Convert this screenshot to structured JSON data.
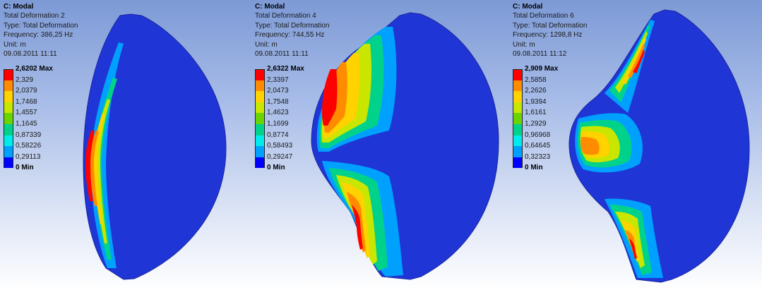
{
  "panels": [
    {
      "title": "C: Modal",
      "result_name": "Total Deformation 2",
      "type_line": "Type: Total Deformation",
      "frequency_line": "Frequency: 386,25 Hz",
      "unit_line": "Unit: m",
      "timestamp": "09.08.2011 11:11",
      "legend": {
        "max_label": "2,6202 Max",
        "levels": [
          "2,329",
          "2,0379",
          "1,7468",
          "1,4557",
          "1,1645",
          "0,87339",
          "0,58226",
          "0,29113"
        ],
        "min_label": "0 Min"
      }
    },
    {
      "title": "C: Modal",
      "result_name": "Total Deformation 4",
      "type_line": "Type: Total Deformation",
      "frequency_line": "Frequency: 744,55 Hz",
      "unit_line": "Unit: m",
      "timestamp": "09.08.2011 11:11",
      "legend": {
        "max_label": "2,6322 Max",
        "levels": [
          "2,3397",
          "2,0473",
          "1,7548",
          "1,4623",
          "1,1699",
          "0,8774",
          "0,58493",
          "0,29247"
        ],
        "min_label": "0 Min"
      }
    },
    {
      "title": "C: Modal",
      "result_name": "Total Deformation 6",
      "type_line": "Type: Total Deformation",
      "frequency_line": "Frequency: 1298,8 Hz",
      "unit_line": "Unit: m",
      "timestamp": "09.08.2011 11:12",
      "legend": {
        "max_label": "2,909 Max",
        "levels": [
          "2,5858",
          "2,2626",
          "1,9394",
          "1,6161",
          "1,2929",
          "0,96968",
          "0,64645",
          "0,32323"
        ],
        "min_label": "0 Min"
      }
    }
  ],
  "contour_colors": [
    "#ff0000",
    "#ff8c00",
    "#ffd200",
    "#c8e600",
    "#6ad400",
    "#00d28c",
    "#00ecec",
    "#00a0ff",
    "#0000ff"
  ],
  "body_color": "#1f35d6",
  "body_edge": "#1a27a0",
  "background_top": "#7d9ad6",
  "background_bottom": "#ffffff"
}
